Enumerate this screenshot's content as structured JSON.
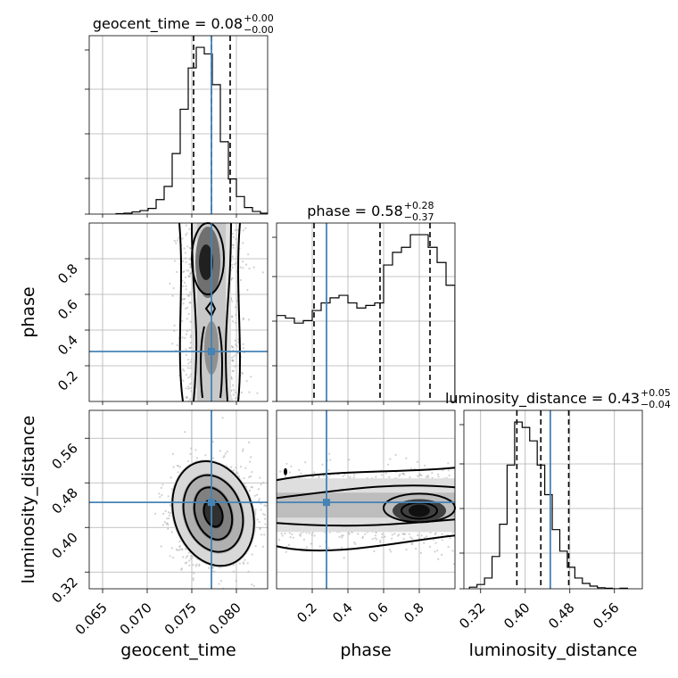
{
  "chart_data": {
    "type": "corner",
    "parameters": [
      "geocent_time",
      "phase",
      "luminosity_distance"
    ],
    "truths": {
      "geocent_time": 0.0772,
      "phase": 0.28,
      "luminosity_distance": 0.445
    },
    "titles": [
      {
        "param": "geocent_time",
        "label": "geocent_time",
        "median": "0.08",
        "plus": "+0.00",
        "minus": "−0.00"
      },
      {
        "param": "phase",
        "label": "phase",
        "median": "0.58",
        "plus": "+0.28",
        "minus": "−0.37"
      },
      {
        "param": "luminosity_distance",
        "label": "luminosity_distance",
        "median": "0.43",
        "plus": "+0.05",
        "minus": "−0.04"
      }
    ],
    "axis_labels": {
      "x": [
        "geocent_time",
        "phase",
        "luminosity_distance"
      ],
      "y": [
        "phase",
        "luminosity_distance"
      ]
    },
    "ticks": {
      "geocent_time": [
        "0.065",
        "0.070",
        "0.075",
        "0.080"
      ],
      "phase": [
        "0.2",
        "0.4",
        "0.6",
        "0.8"
      ],
      "luminosity_distance": [
        "0.32",
        "0.40",
        "0.48",
        "0.56"
      ]
    },
    "ranges": {
      "geocent_time": [
        0.0635,
        0.0835
      ],
      "phase": [
        0.0,
        1.0
      ],
      "luminosity_distance": [
        0.29,
        0.61
      ]
    },
    "histograms": {
      "geocent_time": {
        "x0": 0.0665,
        "bin": 0.0009,
        "counts": [
          1,
          2,
          5,
          8,
          13,
          33,
          63,
          138,
          239,
          333,
          380,
          365,
          295,
          165,
          80,
          40,
          15,
          6,
          2
        ]
      },
      "phase": {
        "x0": 0.0,
        "bin": 0.05,
        "counts": [
          170,
          165,
          155,
          160,
          180,
          195,
          205,
          210,
          195,
          185,
          190,
          195,
          270,
          295,
          305,
          330,
          330,
          305,
          275,
          230
        ]
      },
      "luminosity_distance": {
        "x0": 0.3,
        "bin": 0.0135,
        "counts": [
          3,
          8,
          20,
          60,
          120,
          230,
          310,
          300,
          275,
          230,
          175,
          110,
          70,
          40,
          20,
          10,
          5,
          2,
          1,
          0,
          1
        ]
      }
    },
    "quantile_lines": {
      "geocent_time": [
        0.0752,
        0.0772,
        0.0793
      ],
      "phase": [
        0.21,
        0.58,
        0.86
      ],
      "luminosity_distance": [
        0.385,
        0.428,
        0.478
      ]
    },
    "density_peaks": {
      "phase_vs_geocent_time": [
        {
          "x": 0.0771,
          "y": 0.78,
          "w": 1.0
        },
        {
          "x": 0.0772,
          "y": 0.3,
          "w": 0.45
        }
      ],
      "luminosity_distance_vs_geocent_time": [
        {
          "x": 0.0774,
          "y": 0.425,
          "w": 1.0
        }
      ],
      "luminosity_distance_vs_phase": [
        {
          "x": 0.8,
          "y": 0.43,
          "w": 1.0
        },
        {
          "x": 0.12,
          "y": 0.435,
          "w": 0.5
        }
      ]
    },
    "grid": true
  }
}
